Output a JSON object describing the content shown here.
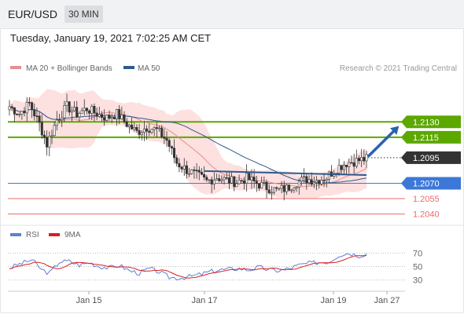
{
  "header": {
    "symbol": "EUR/USD",
    "timeframe": "30 MIN",
    "timestamp": "Tuesday, January 19, 2021 7:02:25 AM CET"
  },
  "colors": {
    "price": "#333333",
    "bb_fill": "#fde0e0",
    "ma20": "#e88e8e",
    "ma50": "#2e5a8c",
    "resistance": "#5ca800",
    "support": "#3d78d8",
    "support_red": "#ef6a6a",
    "rsi": "#5d7fd6",
    "rsi_ma": "#d91f1f",
    "arrow": "#2c60ae",
    "current": "#333333"
  },
  "chart_data": [
    {
      "type": "line",
      "series": [
        {
          "name": "MA 20 + Bollinger Bands",
          "color": "#e88e8e"
        },
        {
          "name": "MA 50",
          "color": "#2e5a8c"
        }
      ],
      "credit": "Research © 2021 Trading Central",
      "x_ticks": [
        "Jan 15",
        "Jan 17",
        "Jan 19",
        "Jan 27"
      ],
      "ylim": [
        1.203,
        1.216
      ],
      "levels": [
        {
          "value": "1.2130",
          "kind": "resistance"
        },
        {
          "value": "1.2115",
          "kind": "resistance"
        },
        {
          "value": "1.2095",
          "kind": "current"
        },
        {
          "value": "1.2070",
          "kind": "support"
        },
        {
          "value": "1.2055",
          "kind": "support-red"
        },
        {
          "value": "1.2040",
          "kind": "support-red"
        }
      ],
      "close_anchors": [
        [
          0,
          1.2145
        ],
        [
          4,
          1.2138
        ],
        [
          8,
          1.2148
        ],
        [
          12,
          1.2128
        ],
        [
          15,
          1.2108
        ],
        [
          19,
          1.2132
        ],
        [
          23,
          1.2145
        ],
        [
          27,
          1.2138
        ],
        [
          31,
          1.2143
        ],
        [
          35,
          1.2138
        ],
        [
          39,
          1.2134
        ],
        [
          43,
          1.2138
        ],
        [
          47,
          1.2128
        ],
        [
          51,
          1.212
        ],
        [
          55,
          1.2125
        ],
        [
          59,
          1.2122
        ],
        [
          63,
          1.2112
        ],
        [
          67,
          1.209
        ],
        [
          71,
          1.2083
        ],
        [
          75,
          1.2078
        ],
        [
          79,
          1.2072
        ],
        [
          83,
          1.2076
        ],
        [
          87,
          1.2073
        ],
        [
          91,
          1.2071
        ],
        [
          95,
          1.2075
        ],
        [
          99,
          1.207
        ],
        [
          103,
          1.2066
        ],
        [
          107,
          1.2063
        ],
        [
          111,
          1.2065
        ],
        [
          115,
          1.2071
        ],
        [
          119,
          1.2074
        ],
        [
          123,
          1.2073
        ],
        [
          127,
          1.2076
        ],
        [
          131,
          1.2085
        ],
        [
          135,
          1.209
        ],
        [
          139,
          1.2092
        ],
        [
          143,
          1.2094
        ]
      ],
      "neckline": [
        [
          78,
          1.2082
        ],
        [
          143,
          1.2078
        ]
      ],
      "projection": [
        [
          144,
          1.2097
        ],
        [
          156,
          1.2126
        ]
      ]
    },
    {
      "type": "line",
      "series": [
        {
          "name": "RSI",
          "color": "#5d7fd6"
        },
        {
          "name": "9MA",
          "color": "#d91f1f"
        }
      ],
      "ylim": [
        18,
        82
      ],
      "y_ticks": [
        "70",
        "50",
        "30"
      ],
      "rsi_anchors": [
        [
          0,
          48
        ],
        [
          5,
          55
        ],
        [
          9,
          60
        ],
        [
          13,
          45
        ],
        [
          16,
          40
        ],
        [
          20,
          57
        ],
        [
          24,
          58
        ],
        [
          28,
          52
        ],
        [
          32,
          56
        ],
        [
          36,
          50
        ],
        [
          40,
          48
        ],
        [
          44,
          52
        ],
        [
          48,
          44
        ],
        [
          52,
          40
        ],
        [
          56,
          47
        ],
        [
          60,
          42
        ],
        [
          64,
          34
        ],
        [
          68,
          33
        ],
        [
          72,
          35
        ],
        [
          76,
          38
        ],
        [
          80,
          42
        ],
        [
          84,
          45
        ],
        [
          88,
          46
        ],
        [
          92,
          47
        ],
        [
          96,
          45
        ],
        [
          100,
          49
        ],
        [
          104,
          45
        ],
        [
          108,
          44
        ],
        [
          112,
          47
        ],
        [
          116,
          52
        ],
        [
          120,
          55
        ],
        [
          124,
          56
        ],
        [
          128,
          57
        ],
        [
          132,
          67
        ],
        [
          136,
          70
        ],
        [
          140,
          66
        ],
        [
          143,
          69
        ]
      ]
    }
  ]
}
